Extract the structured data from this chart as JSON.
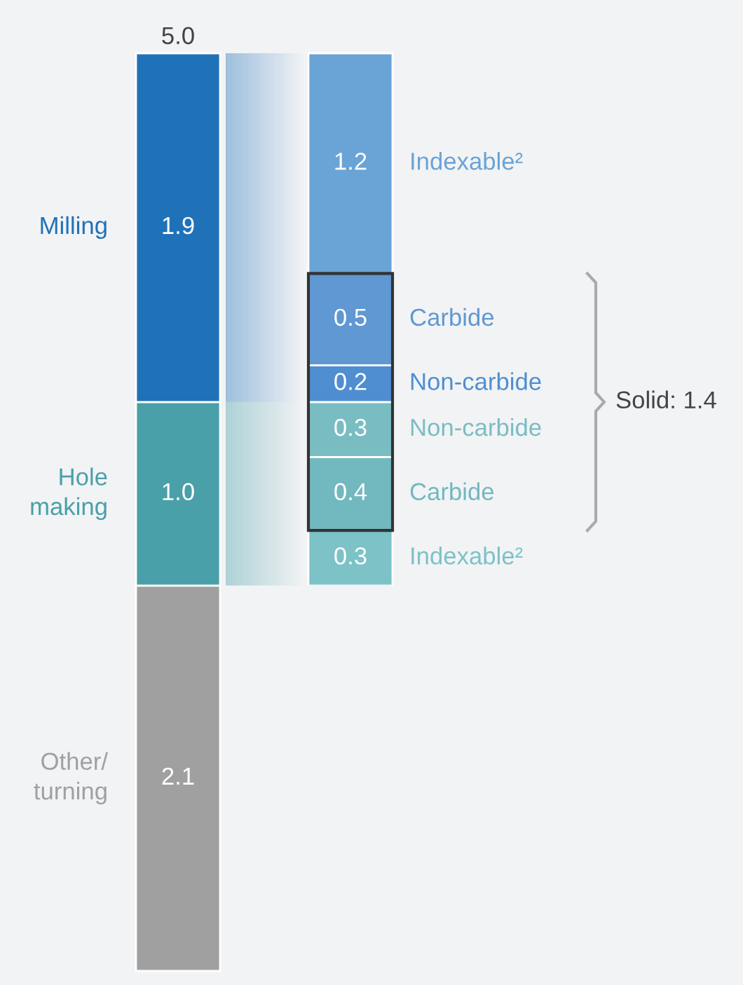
{
  "chart_data": [
    {
      "type": "bar",
      "stacked": true,
      "categories": [
        null
      ],
      "totals": [
        "5.0"
      ],
      "series": [
        {
          "name": "Other/ turning",
          "color": "#a0a0a0",
          "values": [
            2.1
          ],
          "value_labels": [
            "2.1"
          ]
        },
        {
          "name": "Hole making",
          "color": "#4aa0a8",
          "values": [
            1.0
          ],
          "value_labels": [
            "1.0"
          ]
        },
        {
          "name": "Milling",
          "color": "#1f72b8",
          "values": [
            1.9
          ],
          "value_labels": [
            "1.9"
          ]
        }
      ]
    },
    {
      "type": "bar",
      "stacked": true,
      "categories": [
        null
      ],
      "series": [
        {
          "name": "Indexable²",
          "color": "#7cc2c7",
          "values": [
            0.3
          ],
          "value_labels": [
            "0.3"
          ]
        },
        {
          "name": "Carbide",
          "color": "#72b8bf",
          "values": [
            0.4
          ],
          "value_labels": [
            "0.4"
          ]
        },
        {
          "name": "Non-carbide",
          "color": "#79bdc3",
          "values": [
            0.3
          ],
          "value_labels": [
            "0.3"
          ]
        },
        {
          "name": "Non-carbide",
          "color": "#4f8ed0",
          "values": [
            0.2
          ],
          "value_labels": [
            "0.2"
          ]
        },
        {
          "name": "Carbide",
          "color": "#5f98d2",
          "values": [
            0.5
          ],
          "value_labels": [
            "0.5"
          ]
        },
        {
          "name": "Indexable²",
          "color": "#6aa3d6",
          "values": [
            1.2
          ],
          "value_labels": [
            "1.2"
          ]
        }
      ],
      "annotations": [
        "Solid: 1.4"
      ]
    }
  ]
}
